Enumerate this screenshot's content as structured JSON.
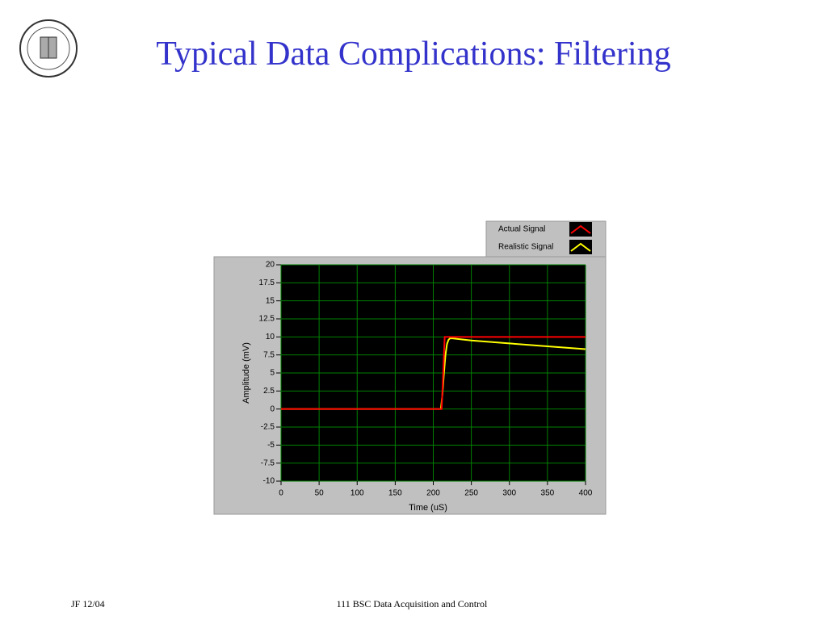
{
  "slide": {
    "title": "Typical Data Complications: Filtering",
    "footer_left": "JF 12/04",
    "footer_center": "111 BSC Data Acquisition and Control"
  },
  "chart_data": {
    "type": "line",
    "xlabel": "Time (uS)",
    "ylabel": "Amplitude (mV)",
    "xlim": [
      0,
      400
    ],
    "xticks": [
      0,
      50,
      100,
      150,
      200,
      250,
      300,
      350,
      400
    ],
    "ylim": [
      -10,
      20
    ],
    "yticks": [
      -10,
      -7.5,
      -5,
      -2.5,
      0,
      2.5,
      5,
      7.5,
      10,
      12.5,
      15,
      17.5,
      20
    ],
    "grid": true,
    "legend": "top-right",
    "series": [
      {
        "name": "Actual Signal",
        "color": "#ff0000",
        "x": [
          0,
          211,
          215,
          400
        ],
        "values": [
          0,
          0,
          10,
          10
        ]
      },
      {
        "name": "Realistic Signal",
        "color": "#ffff00",
        "x": [
          0,
          210,
          212,
          214,
          216,
          218,
          220,
          222,
          225,
          250,
          300,
          350,
          400
        ],
        "values": [
          0,
          0,
          2,
          5,
          7.5,
          9,
          9.6,
          9.8,
          9.8,
          9.5,
          9.1,
          8.7,
          8.3
        ]
      }
    ]
  }
}
